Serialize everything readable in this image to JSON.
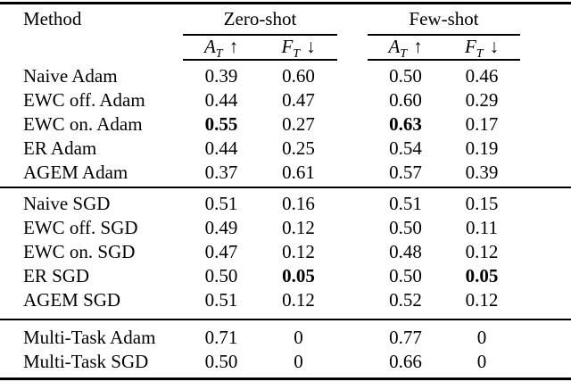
{
  "table": {
    "colors": {
      "text": "#000000",
      "background": "#ffffff",
      "rule": "#000000"
    },
    "header": {
      "method_label": "Method",
      "groups": [
        {
          "label": "Zero-shot"
        },
        {
          "label": "Few-shot"
        }
      ],
      "subcolumns": [
        {
          "letter": "A",
          "subscript": "T",
          "arrow": "↑"
        },
        {
          "letter": "F",
          "subscript": "T",
          "arrow": "↓"
        },
        {
          "letter": "A",
          "subscript": "T",
          "arrow": "↑"
        },
        {
          "letter": "F",
          "subscript": "T",
          "arrow": "↓"
        }
      ]
    },
    "sections": [
      {
        "rows": [
          {
            "method": "Naive Adam",
            "values": [
              "0.39",
              "0.60",
              "0.50",
              "0.46"
            ],
            "bold": [
              false,
              false,
              false,
              false
            ]
          },
          {
            "method": "EWC off. Adam",
            "values": [
              "0.44",
              "0.47",
              "0.60",
              "0.29"
            ],
            "bold": [
              false,
              false,
              false,
              false
            ]
          },
          {
            "method": "EWC on. Adam",
            "values": [
              "0.55",
              "0.27",
              "0.63",
              "0.17"
            ],
            "bold": [
              true,
              false,
              true,
              false
            ]
          },
          {
            "method": "ER Adam",
            "values": [
              "0.44",
              "0.25",
              "0.54",
              "0.19"
            ],
            "bold": [
              false,
              false,
              false,
              false
            ]
          },
          {
            "method": "AGEM Adam",
            "values": [
              "0.37",
              "0.61",
              "0.57",
              "0.39"
            ],
            "bold": [
              false,
              false,
              false,
              false
            ]
          }
        ]
      },
      {
        "rows": [
          {
            "method": "Naive SGD",
            "values": [
              "0.51",
              "0.16",
              "0.51",
              "0.15"
            ],
            "bold": [
              false,
              false,
              false,
              false
            ]
          },
          {
            "method": "EWC off. SGD",
            "values": [
              "0.49",
              "0.12",
              "0.50",
              "0.11"
            ],
            "bold": [
              false,
              false,
              false,
              false
            ]
          },
          {
            "method": "EWC on. SGD",
            "values": [
              "0.47",
              "0.12",
              "0.48",
              "0.12"
            ],
            "bold": [
              false,
              false,
              false,
              false
            ]
          },
          {
            "method": "ER SGD",
            "values": [
              "0.50",
              "0.05",
              "0.50",
              "0.05"
            ],
            "bold": [
              false,
              true,
              false,
              true
            ]
          },
          {
            "method": "AGEM SGD",
            "values": [
              "0.51",
              "0.12",
              "0.52",
              "0.12"
            ],
            "bold": [
              false,
              false,
              false,
              false
            ]
          }
        ]
      },
      {
        "rows": [
          {
            "method": "Multi-Task Adam",
            "values": [
              "0.71",
              "0",
              "0.77",
              "0"
            ],
            "bold": [
              false,
              false,
              false,
              false
            ]
          },
          {
            "method": "Multi-Task SGD",
            "values": [
              "0.50",
              "0",
              "0.66",
              "0"
            ],
            "bold": [
              false,
              false,
              false,
              false
            ]
          }
        ]
      }
    ]
  }
}
